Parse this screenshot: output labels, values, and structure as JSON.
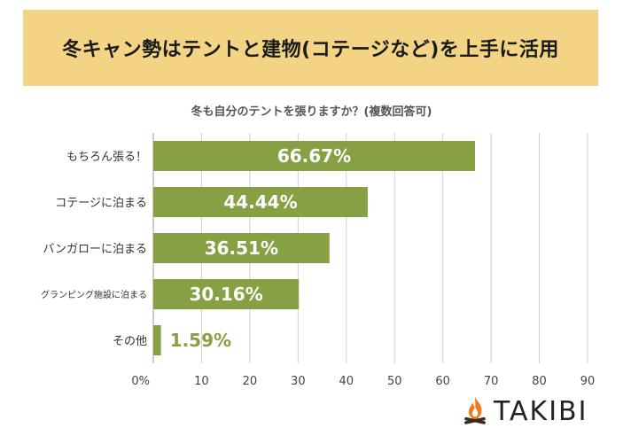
{
  "banner": {
    "title": "冬キャン勢はテントと建物(コテージなど)を上手に活用"
  },
  "chart_data": {
    "type": "bar",
    "orientation": "horizontal",
    "title": "冬も自分のテントを張りますか？(複数回答可)",
    "categories": [
      "もちろん張る！",
      "コテージに泊まる",
      "バンガローに泊まる",
      "グランピング施設に泊まる",
      "その他"
    ],
    "values": [
      66.67,
      44.44,
      36.51,
      30.16,
      1.59
    ],
    "data_labels": [
      "66.67%",
      "44.44%",
      "36.51%",
      "30.16%",
      "1.59%"
    ],
    "x_ticks": [
      "0%",
      "10",
      "20",
      "30",
      "40",
      "50",
      "60",
      "70",
      "80",
      "90"
    ],
    "xlim": [
      0,
      90
    ],
    "grid": true,
    "colors": {
      "bar": "#86a043",
      "label_inside": "#ffffff",
      "label_outside": "#86a043",
      "grid": "#d0d0d0"
    }
  },
  "brand": {
    "name": "TAKIBI",
    "icon": "campfire-icon",
    "colors": {
      "flame": "#f07a1a",
      "logs": "#3a2a20"
    }
  }
}
